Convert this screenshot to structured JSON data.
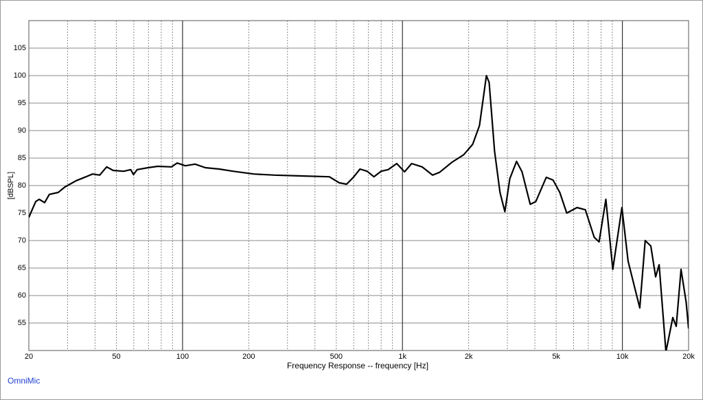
{
  "chart_data": {
    "type": "line",
    "xlabel": "Frequency Response -- frequency [Hz]",
    "ylabel": "[dBSPL]",
    "source": "OmniMic",
    "xscale": "log",
    "xlim": [
      20,
      20000
    ],
    "ylim": [
      50,
      110
    ],
    "xticks": [
      20,
      50,
      100,
      200,
      500,
      {
        "value": 1000,
        "label": "1k"
      },
      {
        "value": 2000,
        "label": "2k"
      },
      {
        "value": 5000,
        "label": "5k"
      },
      {
        "value": 10000,
        "label": "10k"
      },
      {
        "value": 20000,
        "label": "20k"
      }
    ],
    "xmajorgrid": [
      100,
      1000,
      10000
    ],
    "xminorgrid": [
      30,
      40,
      50,
      60,
      70,
      80,
      90,
      200,
      300,
      400,
      500,
      600,
      700,
      800,
      900,
      2000,
      3000,
      4000,
      5000,
      6000,
      7000,
      8000,
      9000
    ],
    "yticks": [
      55,
      60,
      65,
      70,
      75,
      80,
      85,
      90,
      95,
      100,
      105
    ],
    "grid": true,
    "series": [
      {
        "name": "response",
        "color": "#000000",
        "x": [
          20,
          20.7,
          21.5,
          22.3,
          23.6,
          24.8,
          27.2,
          29.2,
          32.9,
          36.4,
          39,
          42,
          45.2,
          48.4,
          54,
          58.1,
          59.8,
          62.2,
          69.6,
          77.1,
          89.1,
          94.5,
          103,
          114,
          127,
          147,
          170,
          211,
          262,
          348,
          465,
          516,
          557,
          598,
          641,
          691,
          742,
          799,
          861,
          942,
          1022,
          1101,
          1228,
          1370,
          1474,
          1680,
          1898,
          2085,
          2240,
          2408,
          2478,
          2624,
          2777,
          2922,
          3076,
          3301,
          3497,
          3810,
          4042,
          4507,
          4840,
          5194,
          5583,
          6220,
          6783,
          7445,
          7832,
          8414,
          9043,
          9955,
          10620,
          12000,
          12700,
          13470,
          14160,
          14690,
          15780,
          16950,
          17570,
          18480,
          19500,
          20000
        ],
        "values": [
          74.2,
          75.6,
          77.1,
          77.5,
          76.9,
          78.4,
          78.75,
          79.75,
          80.9,
          81.6,
          82.1,
          81.9,
          83.4,
          82.75,
          82.6,
          82.9,
          82,
          82.9,
          83.25,
          83.5,
          83.4,
          84.1,
          83.6,
          83.9,
          83.25,
          83,
          82.6,
          82.1,
          81.9,
          81.75,
          81.6,
          80.5,
          80.25,
          81.5,
          83,
          82.6,
          81.6,
          82.6,
          82.9,
          84,
          82.5,
          84,
          83.4,
          81.9,
          82.4,
          84.25,
          85.6,
          87.5,
          90.9,
          100,
          98.75,
          86.25,
          78.75,
          75.25,
          81.25,
          84.4,
          82.5,
          76.6,
          77.1,
          81.5,
          81,
          78.75,
          75,
          76,
          75.6,
          70.6,
          69.75,
          77.5,
          64.75,
          76,
          66.25,
          57.75,
          70,
          69,
          63.4,
          65.6,
          49.75,
          56,
          54.4,
          64.75,
          58.75,
          54
        ]
      }
    ]
  }
}
